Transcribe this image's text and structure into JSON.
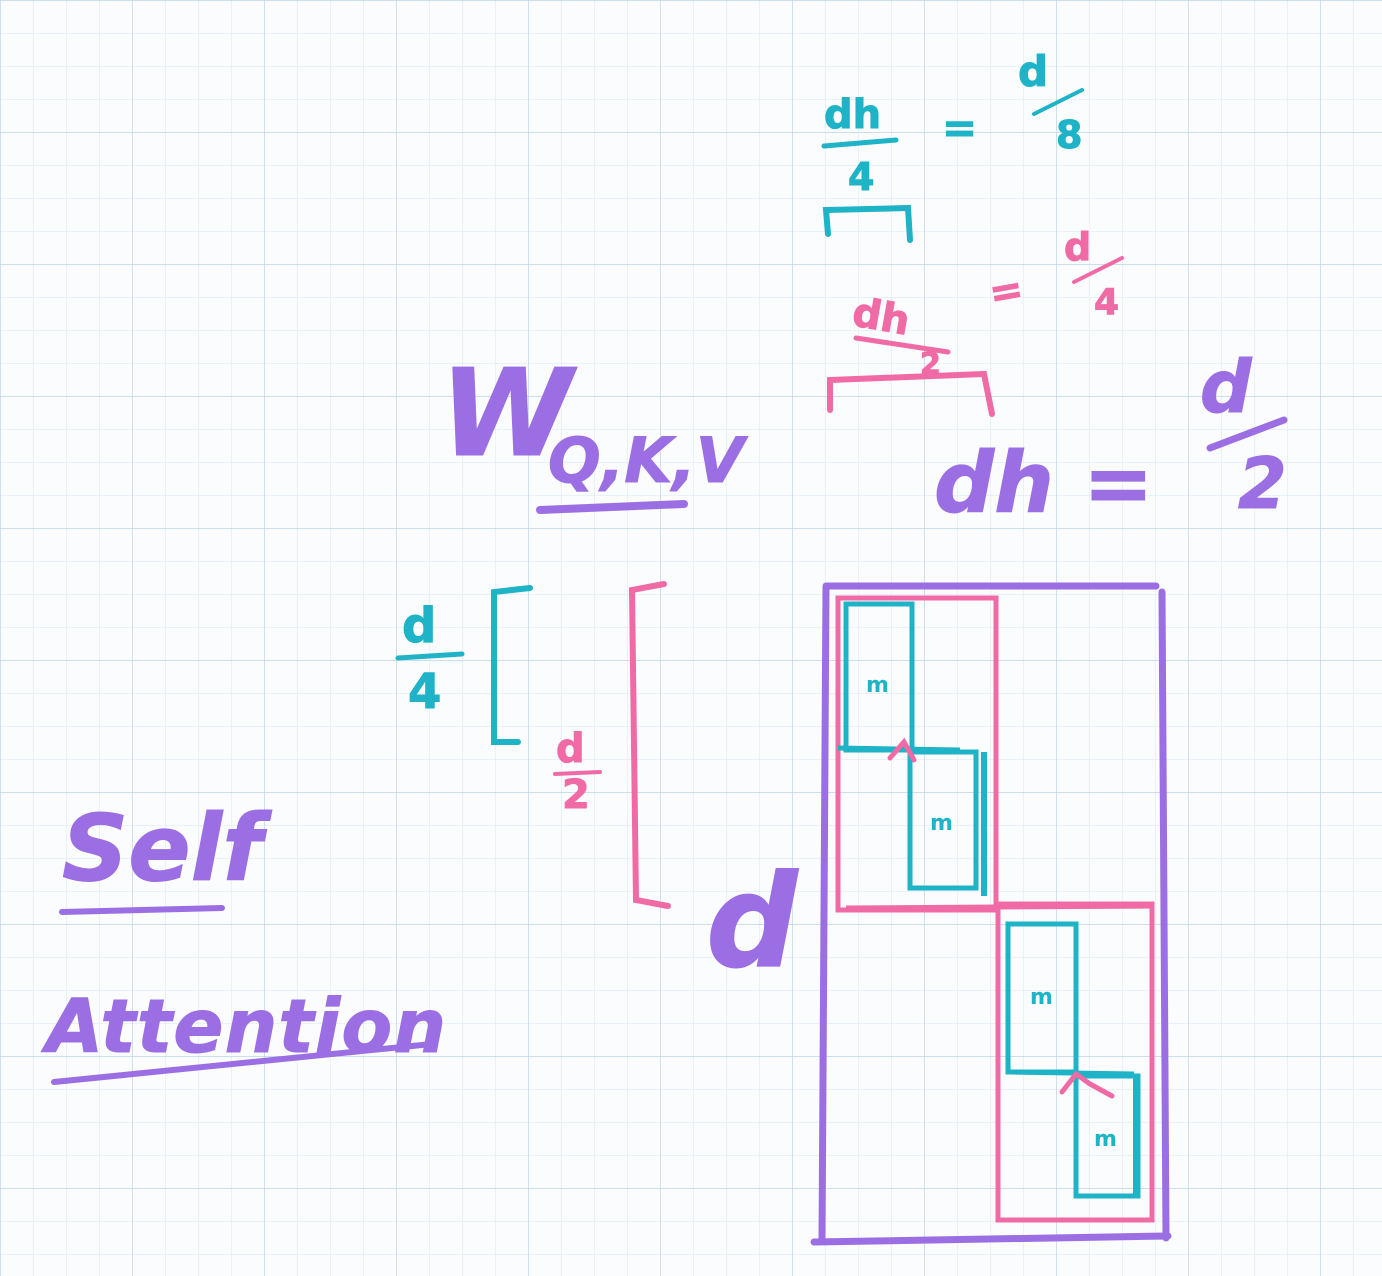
{
  "colors": {
    "grid": "#cfe0ee",
    "purple": "#9b6fe3",
    "pink": "#f06ba6",
    "teal": "#1eb3c6",
    "paper": "#fbfcfe"
  },
  "labels": {
    "title_line1": "Self",
    "title_line2": "Attention",
    "w_main": "W",
    "w_sub": "Q,K,V",
    "d_side": "d",
    "d4_num": "d",
    "d4_den": "4",
    "d2_num": "d",
    "d2_den": "2",
    "dh_eq": "dh =",
    "dh_rhs_num": "d",
    "dh_rhs_den": "2",
    "pink_top_num": "dh",
    "pink_top_den": "2",
    "pink_eq": "=",
    "pink_rhs_num": "d",
    "pink_rhs_den": "4",
    "teal_top_num": "dh",
    "teal_top_den": "4",
    "teal_eq": "=",
    "teal_rhs_num": "d",
    "teal_rhs_den": "8",
    "cell_mark": "m"
  }
}
